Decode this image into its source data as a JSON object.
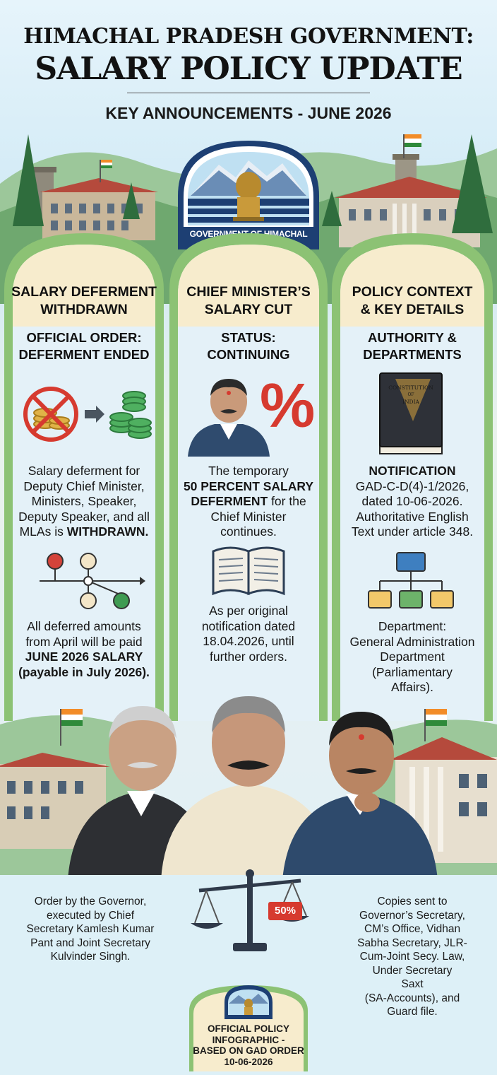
{
  "header": {
    "title_line1": "HIMACHAL PRADESH GOVERNMENT:",
    "title_line2": "SALARY POLICY UPDATE",
    "subtitle": "KEY ANNOUNCEMENTS - JUNE 2026"
  },
  "emblem": {
    "label": "GOVERNMENT OF HIMACHAL PRADESH"
  },
  "columns": [
    {
      "heading_line1": "SALARY DEFERMENT",
      "heading_line2": "WITHDRAWN",
      "sub_line1": "OFFICIAL ORDER:",
      "sub_line2": "DEFERMENT ENDED",
      "text1": [
        "Salary deferment for",
        "Deputy Chief Minister,",
        "Ministers, Speaker,",
        "Deputy Speaker, and all"
      ],
      "text1_last_plain": "MLAs is ",
      "text1_last_bold": "WITHDRAWN.",
      "text2": [
        "All deferred amounts",
        "from April will be paid"
      ],
      "text2_bold": [
        "JUNE 2026 SALARY",
        "(payable in July 2026)."
      ]
    },
    {
      "heading_line1": "CHIEF MINISTER’S",
      "heading_line2": "SALARY CUT",
      "sub_line1": "STATUS:",
      "sub_line2": "CONTINUING",
      "percent_symbol": "%",
      "text1_line1": "The temporary",
      "text1_bold1": "50 PERCENT SALARY",
      "text1_bold2": "DEFERMENT",
      "text1_after_bold": " for the",
      "text1_rest": [
        "Chief Minister",
        "continues."
      ],
      "text2": [
        "As per original",
        "notification dated",
        "18.04.2026, until",
        "further orders."
      ]
    },
    {
      "heading_line1": "POLICY CONTEXT",
      "heading_line2": "& KEY DETAILS",
      "sub_line1": "AUTHORITY &",
      "sub_line2": "DEPARTMENTS",
      "book_title_line1": "CONSTITUTION",
      "book_title_line2": "OF",
      "book_title_line3": "INDIA",
      "text1_bold": "NOTIFICATION",
      "text1": [
        "GAD-C-D(4)-1/2026,",
        "dated 10-06-2026.",
        "Authoritative English",
        "Text under article 348."
      ],
      "text2": [
        "Department:",
        "General Administration",
        "Department",
        "(Parliamentary",
        "Affairs)."
      ]
    }
  ],
  "footer": {
    "left": [
      "Order by the Governor,",
      "executed by Chief",
      "Secretary Kamlesh Kumar",
      "Pant and Joint Secretary",
      "Kulvinder Singh."
    ],
    "right": [
      "Copies sent to",
      "Governor’s Secretary,",
      "CM’s Office, Vidhan",
      "Sabha Secretary, JLR-",
      "Cum-Joint Secy. Law,",
      "Under Secretary",
      "Saxt",
      "(SA-Accounts), and",
      "Guard file."
    ],
    "scale_label": "50%",
    "badge": [
      "OFFICIAL POLICY",
      "INFOGRAPHIC -",
      "BASED ON GAD ORDER",
      "10-06-2026"
    ]
  },
  "colors": {
    "arch_green": "#8cc274",
    "arch_inner": "#e4f1f8",
    "arch_head": "#f7eccd",
    "emblem_blue": "#1d3f73",
    "accent_red": "#d63a2f",
    "coin_green": "#3f9b52"
  }
}
